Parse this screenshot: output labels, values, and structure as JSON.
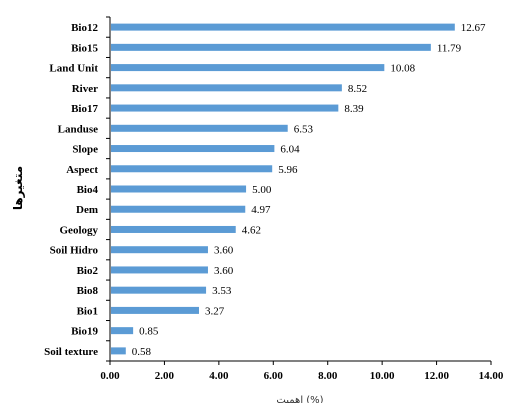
{
  "chart_data": {
    "type": "bar",
    "orientation": "horizontal",
    "categories": [
      "Bio12",
      "Bio15",
      "Land Unit",
      "River",
      "Bio17",
      "Landuse",
      "Slope",
      "Aspect",
      "Bio4",
      "Dem",
      "Geology",
      "Soil Hidro",
      "Bio2",
      "Bio8",
      "Bio1",
      "Bio19",
      "Soil texture"
    ],
    "values": [
      12.67,
      11.79,
      10.08,
      8.52,
      8.39,
      6.53,
      6.04,
      5.96,
      5.0,
      4.97,
      4.62,
      3.6,
      3.6,
      3.53,
      3.27,
      0.85,
      0.58
    ],
    "value_labels": [
      "12.67",
      "11.79",
      "10.08",
      "8.52",
      "8.39",
      "6.53",
      "6.04",
      "5.96",
      "5.00",
      "4.97",
      "4.62",
      "3.60",
      "3.60",
      "3.53",
      "3.27",
      "0.85",
      "0.58"
    ],
    "xlim": [
      0,
      14
    ],
    "xticks": [
      "0.00",
      "2.00",
      "4.00",
      "6.00",
      "8.00",
      "10.00",
      "12.00",
      "14.00"
    ],
    "ylabel": "متغیرها",
    "xlabel": "اهمیت (%)",
    "grid": false,
    "bar_color": "#5b9bd5"
  }
}
